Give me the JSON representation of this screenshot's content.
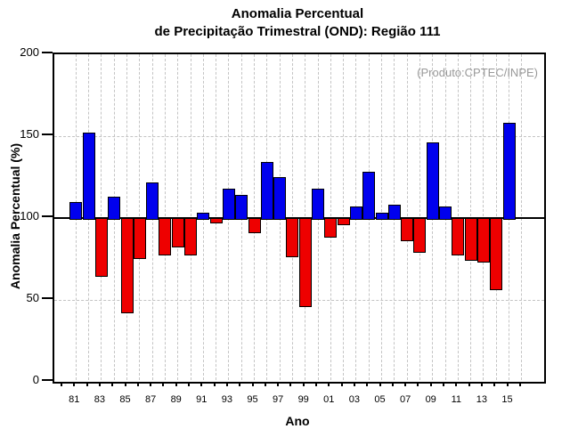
{
  "page": {
    "background": "#FFFFFF"
  },
  "chart_data": {
    "type": "bar",
    "title_line1": "Anomalia Percentual",
    "title_line2": "de Precipitação Trimestral (OND): Região 111",
    "annotation": "(Produto:CPTEC/INPE)",
    "xlabel": "Ano",
    "ylabel": "Anomalia Percentual (%)",
    "ylim": [
      0,
      200
    ],
    "y_ticks": [
      0,
      50,
      100,
      150,
      200
    ],
    "baseline": 100,
    "grid": {
      "horizontal_dashed_at": [
        50,
        150
      ],
      "vertical_dashed_years": [
        1981,
        2016
      ],
      "color": "#C4C4C4"
    },
    "colors": {
      "above": "#0000EE",
      "below": "#EE0000",
      "outline": "#000000",
      "baseline_line": "#000000",
      "annotation": "#999999"
    },
    "x_ticks_year_range": [
      1980,
      2016
    ],
    "x_tick_labels": [
      {
        "year": 1981,
        "label": "81"
      },
      {
        "year": 1983,
        "label": "83"
      },
      {
        "year": 1985,
        "label": "85"
      },
      {
        "year": 1987,
        "label": "87"
      },
      {
        "year": 1989,
        "label": "89"
      },
      {
        "year": 1991,
        "label": "91"
      },
      {
        "year": 1993,
        "label": "93"
      },
      {
        "year": 1995,
        "label": "95"
      },
      {
        "year": 1997,
        "label": "97"
      },
      {
        "year": 1999,
        "label": "99"
      },
      {
        "year": 2001,
        "label": "01"
      },
      {
        "year": 2003,
        "label": "03"
      },
      {
        "year": 2005,
        "label": "05"
      },
      {
        "year": 2007,
        "label": "07"
      },
      {
        "year": 2009,
        "label": "09"
      },
      {
        "year": 2011,
        "label": "11"
      },
      {
        "year": 2013,
        "label": "13"
      },
      {
        "year": 2015,
        "label": "15"
      }
    ],
    "series": [
      {
        "year": 1981,
        "value": 110
      },
      {
        "year": 1982,
        "value": 152
      },
      {
        "year": 1983,
        "value": 65
      },
      {
        "year": 1984,
        "value": 113
      },
      {
        "year": 1985,
        "value": 43
      },
      {
        "year": 1986,
        "value": 76
      },
      {
        "year": 1987,
        "value": 122
      },
      {
        "year": 1988,
        "value": 78
      },
      {
        "year": 1989,
        "value": 83
      },
      {
        "year": 1990,
        "value": 78
      },
      {
        "year": 1991,
        "value": 103
      },
      {
        "year": 1992,
        "value": 98
      },
      {
        "year": 1993,
        "value": 118
      },
      {
        "year": 1994,
        "value": 114
      },
      {
        "year": 1995,
        "value": 92
      },
      {
        "year": 1996,
        "value": 134
      },
      {
        "year": 1997,
        "value": 125
      },
      {
        "year": 1998,
        "value": 77
      },
      {
        "year": 1999,
        "value": 47
      },
      {
        "year": 2000,
        "value": 118
      },
      {
        "year": 2001,
        "value": 89
      },
      {
        "year": 2002,
        "value": 97
      },
      {
        "year": 2003,
        "value": 107
      },
      {
        "year": 2004,
        "value": 128
      },
      {
        "year": 2005,
        "value": 103
      },
      {
        "year": 2006,
        "value": 108
      },
      {
        "year": 2007,
        "value": 87
      },
      {
        "year": 2008,
        "value": 80
      },
      {
        "year": 2009,
        "value": 146
      },
      {
        "year": 2010,
        "value": 107
      },
      {
        "year": 2011,
        "value": 78
      },
      {
        "year": 2012,
        "value": 75
      },
      {
        "year": 2013,
        "value": 74
      },
      {
        "year": 2014,
        "value": 57
      },
      {
        "year": 2015,
        "value": 158
      }
    ]
  }
}
